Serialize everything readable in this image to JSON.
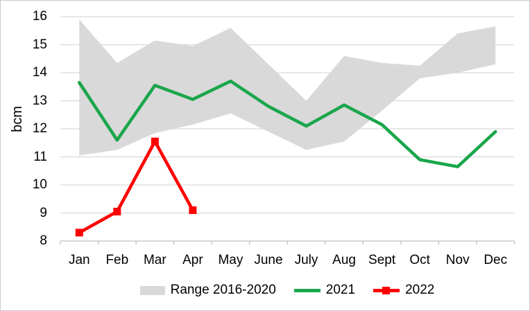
{
  "chart_data": {
    "type": "line",
    "ylabel": "bcm",
    "categories": [
      "Jan",
      "Feb",
      "Mar",
      "Apr",
      "May",
      "June",
      "July",
      "Aug",
      "Sept",
      "Oct",
      "Nov",
      "Dec"
    ],
    "y_axis": {
      "min": 8,
      "max": 16,
      "step": 1,
      "tick_labels": [
        "8",
        "9",
        "10",
        "11",
        "12",
        "13",
        "14",
        "15",
        "16"
      ]
    },
    "series": [
      {
        "name": "Range 2016-2020",
        "type": "band",
        "color": "#D9D9D9",
        "high": [
          15.9,
          14.35,
          15.15,
          14.95,
          15.6,
          14.3,
          13.0,
          14.6,
          14.35,
          14.25,
          15.4,
          15.65
        ],
        "low": [
          11.05,
          11.25,
          11.85,
          12.15,
          12.55,
          11.9,
          11.25,
          11.55,
          12.65,
          13.8,
          14.0,
          14.3
        ]
      },
      {
        "name": "2021",
        "type": "line",
        "color": "#1AA64B",
        "values": [
          13.65,
          11.6,
          13.55,
          13.05,
          13.7,
          12.8,
          12.1,
          12.85,
          12.15,
          10.9,
          10.65,
          11.9
        ]
      },
      {
        "name": "2022",
        "type": "line",
        "marker": "square",
        "color": "#FF0000",
        "values": [
          8.3,
          9.05,
          11.55,
          9.1,
          null,
          null,
          null,
          null,
          null,
          null,
          null,
          null
        ]
      }
    ],
    "legend_position": "bottom",
    "grid": "horizontal",
    "colors": {
      "gridline": "#D9D9D9",
      "axis": "#BFBFBF",
      "text": "#000000",
      "background": "#FFFFFF"
    }
  }
}
